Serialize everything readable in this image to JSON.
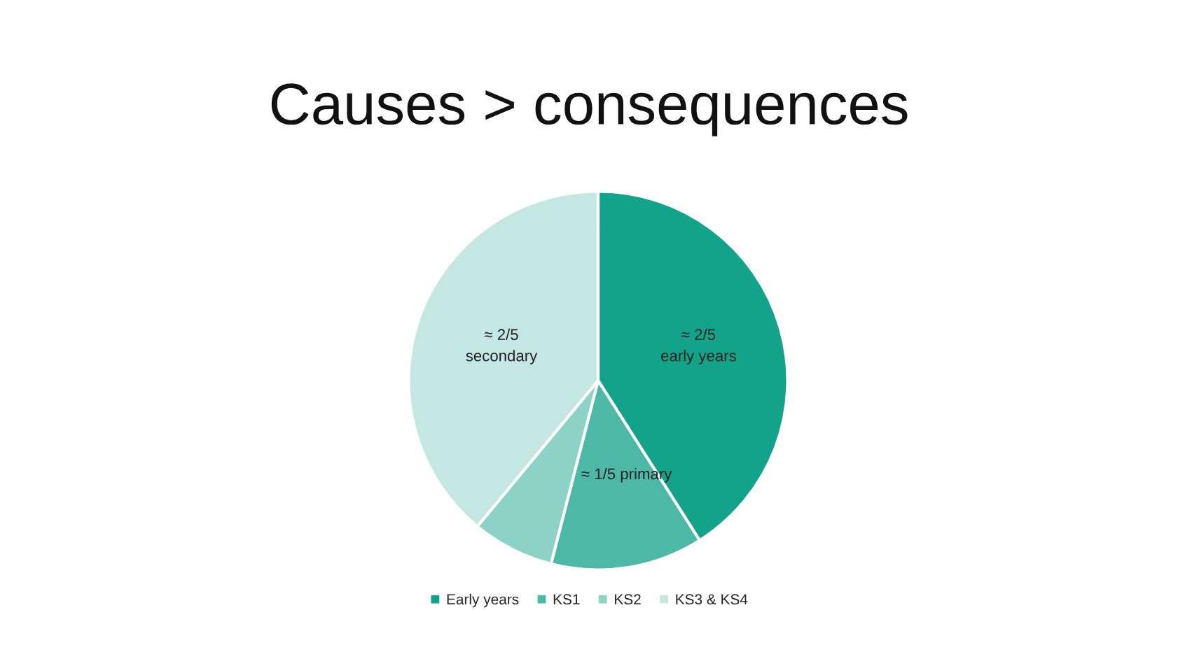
{
  "chart_data": {
    "type": "pie",
    "title": "Causes > consequences",
    "categories": [
      "Early years",
      "KS1",
      "KS2",
      "KS3 & KS4"
    ],
    "values": [
      41,
      13,
      7,
      39
    ],
    "colors": [
      "#13a38a",
      "#4db8a6",
      "#8dd2c6",
      "#c5e7e1"
    ],
    "annotations": [
      "≈ 2/5\nearly years",
      "≈ 1/5 primary",
      "≈ 2/5\nsecondary"
    ],
    "legend": "bottom"
  }
}
